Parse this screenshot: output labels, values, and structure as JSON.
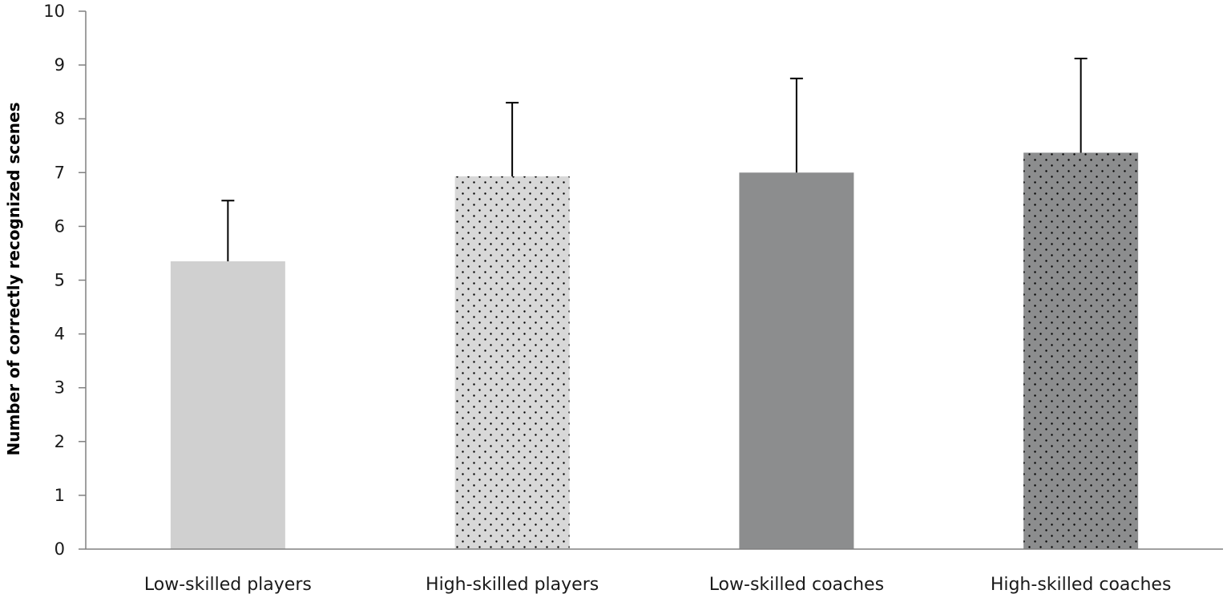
{
  "chart_data": {
    "type": "bar",
    "categories": [
      "Low-skilled players",
      "High-skilled players",
      "Low-skilled coaches",
      "High-skilled coaches"
    ],
    "values": [
      5.35,
      6.93,
      7.0,
      7.37
    ],
    "error_upper": [
      6.48,
      8.3,
      8.75,
      9.12
    ],
    "title": "",
    "xlabel": "",
    "ylabel": "Number of correctly recognized scenes",
    "ylim": [
      0,
      10
    ],
    "yticks": [
      "0",
      "1",
      "2",
      "3",
      "4",
      "5",
      "6",
      "7",
      "8",
      "9",
      "10"
    ],
    "grid": false,
    "legend": "none",
    "bar_colors": [
      "#d0d0d0",
      "#d8d8d8",
      "#8c8d8e",
      "#8c8d8e"
    ],
    "bar_dotted": [
      false,
      true,
      false,
      true
    ],
    "dot_color": "#000000"
  }
}
